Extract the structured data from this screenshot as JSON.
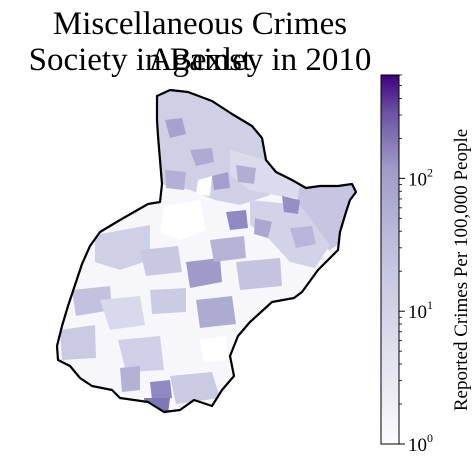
{
  "title_line1": "Miscellaneous Crimes Against",
  "title_line2": "Society in Bexley in 2010",
  "chart_data": {
    "type": "choropleth",
    "region": "Bexley",
    "year": 2010,
    "colorbar": {
      "label": "Reported Crimes Per 100,000 People",
      "scale": "log",
      "range": [
        1,
        600
      ],
      "ticks": [
        {
          "value": 1,
          "base": "10",
          "exp": "0"
        },
        {
          "value": 10,
          "base": "10",
          "exp": "1"
        },
        {
          "value": 100,
          "base": "10",
          "exp": "2"
        }
      ],
      "colormap": "Purples"
    }
  },
  "colors": {
    "outline": "#000000",
    "low": "#fcfbfd",
    "mid": "#cfcfe6",
    "high": "#9e9ac8",
    "max": "#3f007d"
  }
}
